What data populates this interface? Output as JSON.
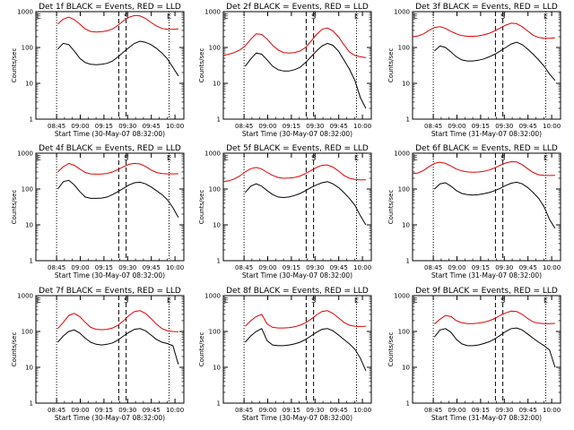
{
  "chart_data": [
    {
      "type": "line",
      "title": "Det 1f BLACK = Events, RED = LLD",
      "xlabel": "Start Time (30-May-07 08:32:00)",
      "ylabel": "Counts/sec",
      "x_ticks": [
        "08:45",
        "09:00",
        "09:15",
        "09:30",
        "09:45",
        "10:00"
      ],
      "y_ticks": [
        "1",
        "10",
        "100",
        "1000"
      ],
      "y_scale": "log",
      "ylim": [
        1,
        1000
      ],
      "markers": [
        "E",
        "S",
        "E"
      ],
      "series": [
        {
          "color": "#e00000",
          "values": [
            null,
            null,
            null,
            null,
            450,
            620,
            700,
            600,
            450,
            330,
            280,
            270,
            275,
            290,
            330,
            420,
            560,
            700,
            780,
            760,
            650,
            500,
            400,
            340,
            320,
            320,
            330,
            null
          ]
        },
        {
          "color": "#000000",
          "values": [
            null,
            null,
            null,
            null,
            90,
            130,
            120,
            80,
            50,
            38,
            34,
            33,
            34,
            36,
            42,
            55,
            75,
            100,
            130,
            150,
            140,
            120,
            95,
            70,
            48,
            28,
            16,
            null
          ]
        }
      ]
    },
    {
      "type": "line",
      "title": "Det 2f BLACK = Events, RED = LLD",
      "xlabel": "Start Time (30-May-07 08:32:00)",
      "ylabel": "Counts/sec",
      "x_ticks": [
        "08:45",
        "09:00",
        "09:15",
        "09:30",
        "09:45",
        "10:00"
      ],
      "y_ticks": [
        "1",
        "10",
        "100",
        "1000"
      ],
      "y_scale": "log",
      "ylim": [
        1,
        1000
      ],
      "markers": [
        "E",
        "S",
        "E"
      ],
      "series": [
        {
          "color": "#e00000",
          "values": [
            60,
            65,
            72,
            85,
            110,
            170,
            240,
            230,
            170,
            115,
            85,
            72,
            70,
            72,
            80,
            100,
            150,
            230,
            320,
            350,
            290,
            200,
            120,
            75,
            60,
            55,
            52,
            null
          ]
        },
        {
          "color": "#000000",
          "values": [
            null,
            null,
            null,
            null,
            30,
            48,
            70,
            65,
            45,
            30,
            24,
            22,
            22,
            24,
            28,
            38,
            55,
            80,
            110,
            130,
            115,
            80,
            45,
            25,
            12,
            4,
            2,
            null
          ]
        }
      ]
    },
    {
      "type": "line",
      "title": "Det 3f BLACK = Events, RED = LLD",
      "xlabel": "Start Time (31-May-07 08:32:00)",
      "ylabel": "Counts/sec",
      "x_ticks": [
        "08:45",
        "09:00",
        "09:15",
        "09:30",
        "09:45",
        "10:00"
      ],
      "y_ticks": [
        "1",
        "10",
        "100",
        "1000"
      ],
      "y_scale": "log",
      "ylim": [
        1,
        1000
      ],
      "markers": [
        "E",
        "S",
        "E"
      ],
      "series": [
        {
          "color": "#e00000",
          "values": [
            200,
            210,
            240,
            300,
            360,
            380,
            340,
            280,
            240,
            215,
            205,
            205,
            210,
            225,
            250,
            290,
            350,
            420,
            480,
            460,
            380,
            290,
            220,
            190,
            180,
            180,
            185,
            null
          ]
        },
        {
          "color": "#000000",
          "values": [
            null,
            null,
            null,
            null,
            80,
            110,
            100,
            75,
            55,
            45,
            42,
            42,
            44,
            48,
            55,
            65,
            80,
            100,
            125,
            140,
            120,
            90,
            65,
            45,
            30,
            18,
            12,
            null
          ]
        }
      ]
    },
    {
      "type": "line",
      "title": "Det 4f BLACK = Events, RED = LLD",
      "xlabel": "Start Time (30-May-07 08:32:00)",
      "ylabel": "Counts/sec",
      "x_ticks": [
        "08:45",
        "09:00",
        "09:15",
        "09:30",
        "09:45",
        "10:00"
      ],
      "y_ticks": [
        "1",
        "10",
        "100",
        "1000"
      ],
      "y_scale": "log",
      "ylim": [
        1,
        1000
      ],
      "markers": [
        "E",
        "S",
        "E"
      ],
      "series": [
        {
          "color": "#e00000",
          "values": [
            null,
            null,
            null,
            null,
            300,
            420,
            520,
            460,
            360,
            290,
            265,
            260,
            262,
            272,
            300,
            350,
            420,
            490,
            520,
            500,
            430,
            340,
            290,
            270,
            265,
            265,
            268,
            null
          ]
        },
        {
          "color": "#000000",
          "values": [
            null,
            null,
            null,
            null,
            100,
            160,
            175,
            130,
            85,
            60,
            55,
            55,
            56,
            60,
            70,
            85,
            105,
            130,
            150,
            155,
            140,
            115,
            90,
            70,
            50,
            30,
            16,
            null
          ]
        }
      ]
    },
    {
      "type": "line",
      "title": "Det 5f BLACK = Events, RED = LLD",
      "xlabel": "Start Time (30-May-07 08:32:00)",
      "ylabel": "Counts/sec",
      "x_ticks": [
        "08:45",
        "09:00",
        "09:15",
        "09:30",
        "09:45",
        "10:00"
      ],
      "y_ticks": [
        "1",
        "10",
        "100",
        "1000"
      ],
      "y_scale": "log",
      "ylim": [
        1,
        1000
      ],
      "markers": [
        "E",
        "S",
        "E"
      ],
      "series": [
        {
          "color": "#e00000",
          "values": [
            160,
            170,
            190,
            230,
            300,
            370,
            400,
            360,
            290,
            240,
            210,
            200,
            202,
            210,
            230,
            270,
            330,
            400,
            460,
            470,
            410,
            320,
            240,
            200,
            185,
            180,
            180,
            null
          ]
        },
        {
          "color": "#000000",
          "values": [
            null,
            null,
            null,
            null,
            80,
            120,
            140,
            120,
            90,
            70,
            60,
            58,
            60,
            66,
            75,
            90,
            110,
            130,
            150,
            160,
            140,
            110,
            80,
            55,
            35,
            18,
            10,
            null
          ]
        }
      ]
    },
    {
      "type": "line",
      "title": "Det 6f BLACK = Events, RED = LLD",
      "xlabel": "Start Time (31-May-07 08:32:00)",
      "ylabel": "Counts/sec",
      "x_ticks": [
        "08:45",
        "09:00",
        "09:15",
        "09:30",
        "09:45",
        "10:00"
      ],
      "y_ticks": [
        "1",
        "10",
        "100",
        "1000"
      ],
      "y_scale": "log",
      "ylim": [
        1,
        1000
      ],
      "markers": [
        "E",
        "S",
        "E"
      ],
      "series": [
        {
          "color": "#e00000",
          "values": [
            270,
            280,
            330,
            420,
            520,
            560,
            520,
            440,
            360,
            320,
            300,
            295,
            298,
            310,
            340,
            390,
            460,
            530,
            580,
            570,
            480,
            370,
            290,
            250,
            240,
            238,
            240,
            null
          ]
        },
        {
          "color": "#000000",
          "values": [
            null,
            null,
            null,
            null,
            100,
            140,
            150,
            120,
            90,
            75,
            70,
            68,
            70,
            74,
            80,
            90,
            105,
            125,
            145,
            155,
            140,
            110,
            80,
            55,
            32,
            14,
            8,
            null
          ]
        }
      ]
    },
    {
      "type": "line",
      "title": "Det 7f BLACK = Events, RED = LLD",
      "xlabel": "Start Time (30-May-07 08:32:00)",
      "ylabel": "Counts/sec",
      "x_ticks": [
        "08:45",
        "09:00",
        "09:15",
        "09:30",
        "09:45",
        "10:00"
      ],
      "y_ticks": [
        "1",
        "10",
        "100",
        "1000"
      ],
      "y_scale": "log",
      "ylim": [
        1,
        1000
      ],
      "markers": [
        "E",
        "S",
        "E"
      ],
      "series": [
        {
          "color": "#e00000",
          "values": [
            null,
            null,
            null,
            null,
            120,
            180,
            280,
            320,
            260,
            180,
            130,
            115,
            112,
            115,
            125,
            150,
            200,
            280,
            360,
            380,
            320,
            230,
            160,
            120,
            105,
            100,
            98,
            null
          ]
        },
        {
          "color": "#000000",
          "values": [
            null,
            null,
            null,
            null,
            50,
            75,
            100,
            110,
            90,
            65,
            50,
            44,
            42,
            44,
            48,
            58,
            75,
            95,
            115,
            120,
            105,
            80,
            60,
            50,
            46,
            40,
            12,
            null
          ]
        }
      ]
    },
    {
      "type": "line",
      "title": "Det 8f BLACK = Events, RED = LLD",
      "xlabel": "Start Time (30-May-07 08:32:00)",
      "ylabel": "Counts/sec",
      "x_ticks": [
        "08:45",
        "09:00",
        "09:15",
        "09:30",
        "09:45",
        "10:00"
      ],
      "y_ticks": [
        "1",
        "10",
        "100",
        "1000"
      ],
      "y_scale": "log",
      "ylim": [
        1,
        1000
      ],
      "markers": [
        "E",
        "S",
        "E"
      ],
      "series": [
        {
          "color": "#e00000",
          "values": [
            null,
            null,
            null,
            null,
            140,
            200,
            260,
            300,
            160,
            130,
            125,
            125,
            128,
            135,
            150,
            175,
            220,
            290,
            360,
            380,
            320,
            240,
            180,
            150,
            140,
            138,
            140,
            null
          ]
        },
        {
          "color": "#000000",
          "values": [
            null,
            null,
            null,
            null,
            50,
            75,
            100,
            120,
            55,
            42,
            40,
            40,
            42,
            45,
            50,
            60,
            75,
            95,
            115,
            120,
            105,
            80,
            60,
            45,
            32,
            18,
            8,
            null
          ]
        }
      ]
    },
    {
      "type": "line",
      "title": "Det 9f BLACK = Events, RED = LLD",
      "xlabel": "Start Time (31-May-07 08:32:00)",
      "ylabel": "Counts/sec",
      "x_ticks": [
        "08:45",
        "09:00",
        "09:15",
        "09:30",
        "09:45",
        "10:00"
      ],
      "y_ticks": [
        "1",
        "10",
        "100",
        "1000"
      ],
      "y_scale": "log",
      "ylim": [
        1,
        1000
      ],
      "markers": [
        "E",
        "S",
        "E"
      ],
      "series": [
        {
          "color": "#e00000",
          "values": [
            null,
            null,
            null,
            null,
            160,
            220,
            280,
            260,
            200,
            175,
            165,
            165,
            170,
            180,
            200,
            230,
            280,
            330,
            370,
            360,
            300,
            230,
            185,
            170,
            165,
            165,
            168,
            null
          ]
        },
        {
          "color": "#000000",
          "values": [
            null,
            null,
            null,
            null,
            70,
            110,
            120,
            95,
            60,
            45,
            40,
            40,
            42,
            46,
            52,
            62,
            78,
            100,
            120,
            125,
            110,
            85,
            65,
            50,
            40,
            30,
            10,
            null
          ]
        }
      ]
    }
  ]
}
